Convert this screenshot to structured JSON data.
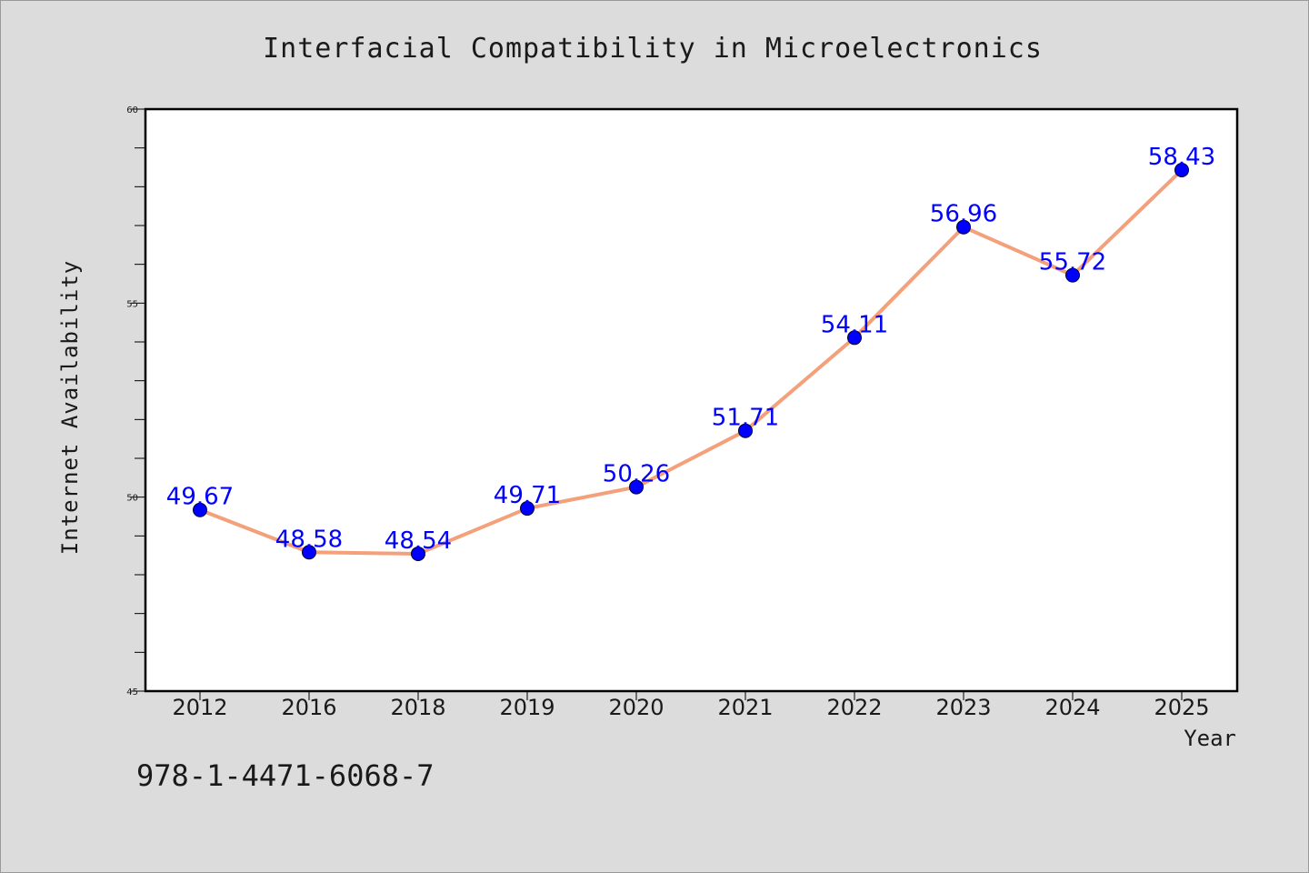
{
  "chart_data": {
    "type": "line",
    "title": "Interfacial Compatibility in Microelectronics",
    "xlabel": "Year",
    "ylabel": "Internet Availability",
    "categories": [
      "2012",
      "2016",
      "2018",
      "2019",
      "2020",
      "2021",
      "2022",
      "2023",
      "2024",
      "2025"
    ],
    "values": [
      49.67,
      48.58,
      48.54,
      49.71,
      50.26,
      51.71,
      54.11,
      56.96,
      55.72,
      58.43
    ],
    "value_labels": [
      "49.67",
      "48.58",
      "48.54",
      "49.71",
      "50.26",
      "51.71",
      "54.11",
      "56.96",
      "55.72",
      "58.43"
    ],
    "ylim": [
      45,
      60
    ],
    "yticks": [
      "45",
      "50",
      "55",
      "60"
    ],
    "grid": false,
    "line_color": "#f4a07a",
    "marker_color": "#0000ff",
    "label_color": "#0000ff"
  },
  "footer": {
    "isbn": "978-1-4471-6068-7"
  }
}
